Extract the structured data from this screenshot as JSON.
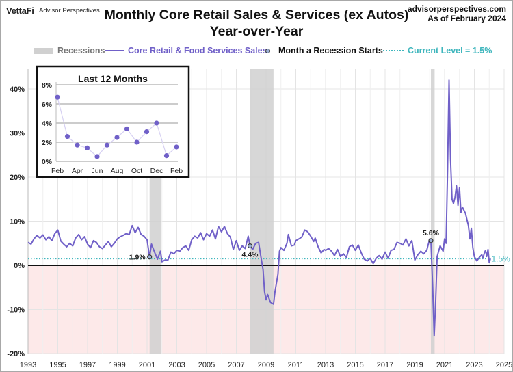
{
  "header": {
    "brand": "VettaFi",
    "brand_sub": "Advisor Perspectives",
    "title_line1": "Monthly Core Retail Sales & Services (ex Autos)",
    "title_line2": "Year-over-Year",
    "source_line1": "advisorperspectives.com",
    "source_line2": "As of February 2024"
  },
  "legend": {
    "recessions": "Recessions",
    "series": "Core Retail & Food Services Sales",
    "recession_start": "Month a Recession Starts",
    "current": "Current Level = 1.5%"
  },
  "colors": {
    "series": "#7060c8",
    "recession": "#d0d0d0",
    "current_line": "#3fb6bd",
    "negative_band": "#fde9e9",
    "grid": "#e4e4e4"
  },
  "chart_data": [
    {
      "type": "line",
      "title": "Monthly Core Retail Sales & Services (ex Autos) Year-over-Year",
      "xlabel": "",
      "ylabel": "",
      "xlim": [
        1993,
        2025
      ],
      "ylim": [
        -20,
        45
      ],
      "x_ticks": [
        "1993",
        "1995",
        "1997",
        "1999",
        "2001",
        "2003",
        "2005",
        "2007",
        "2009",
        "2011",
        "2013",
        "2015",
        "2017",
        "2019",
        "2021",
        "2023",
        "2025"
      ],
      "y_ticks": [
        "-20%",
        "-10%",
        "0%",
        "10%",
        "20%",
        "30%",
        "40%"
      ],
      "y_tick_values": [
        -20,
        -10,
        0,
        10,
        20,
        30,
        40
      ],
      "grid": true,
      "legend_position": "top",
      "current_level": 1.5,
      "current_level_label": "1.5%",
      "recessions": [
        {
          "start": 2001.17,
          "end": 2001.92
        },
        {
          "start": 2007.92,
          "end": 2009.5
        },
        {
          "start": 2020.08,
          "end": 2020.33
        }
      ],
      "recession_start_markers": [
        {
          "x": 2001.17,
          "y": 1.9,
          "label": "1.9%"
        },
        {
          "x": 2007.92,
          "y": 4.4,
          "label": "4.4%"
        },
        {
          "x": 2020.08,
          "y": 5.6,
          "label": "5.6%"
        }
      ],
      "series": [
        {
          "name": "Core Retail & Food Services Sales",
          "points": [
            [
              1993.0,
              5.2
            ],
            [
              1993.2,
              4.8
            ],
            [
              1993.4,
              6.0
            ],
            [
              1993.6,
              6.8
            ],
            [
              1993.8,
              6.2
            ],
            [
              1994.0,
              6.9
            ],
            [
              1994.2,
              5.8
            ],
            [
              1994.4,
              6.5
            ],
            [
              1994.6,
              5.6
            ],
            [
              1994.8,
              7.2
            ],
            [
              1995.0,
              8.0
            ],
            [
              1995.2,
              5.5
            ],
            [
              1995.4,
              4.8
            ],
            [
              1995.6,
              4.2
            ],
            [
              1995.8,
              5.0
            ],
            [
              1996.0,
              4.4
            ],
            [
              1996.2,
              6.2
            ],
            [
              1996.4,
              7.0
            ],
            [
              1996.6,
              5.8
            ],
            [
              1996.8,
              6.5
            ],
            [
              1997.0,
              4.8
            ],
            [
              1997.2,
              4.0
            ],
            [
              1997.4,
              5.6
            ],
            [
              1997.6,
              5.2
            ],
            [
              1997.8,
              4.2
            ],
            [
              1998.0,
              3.8
            ],
            [
              1998.2,
              4.6
            ],
            [
              1998.4,
              5.4
            ],
            [
              1998.6,
              4.2
            ],
            [
              1998.8,
              5.0
            ],
            [
              1999.0,
              6.0
            ],
            [
              1999.2,
              6.5
            ],
            [
              1999.4,
              6.8
            ],
            [
              1999.6,
              7.2
            ],
            [
              1999.8,
              7.0
            ],
            [
              2000.0,
              9.0
            ],
            [
              2000.2,
              7.4
            ],
            [
              2000.4,
              8.6
            ],
            [
              2000.6,
              7.0
            ],
            [
              2000.8,
              6.6
            ],
            [
              2001.0,
              5.8
            ],
            [
              2001.17,
              1.9
            ],
            [
              2001.3,
              4.8
            ],
            [
              2001.5,
              3.0
            ],
            [
              2001.7,
              1.4
            ],
            [
              2001.9,
              3.2
            ],
            [
              2002.0,
              0.8
            ],
            [
              2002.2,
              1.2
            ],
            [
              2002.4,
              1.2
            ],
            [
              2002.6,
              3.0
            ],
            [
              2002.8,
              2.6
            ],
            [
              2003.0,
              3.4
            ],
            [
              2003.2,
              3.2
            ],
            [
              2003.4,
              4.0
            ],
            [
              2003.6,
              4.4
            ],
            [
              2003.8,
              3.4
            ],
            [
              2004.0,
              5.8
            ],
            [
              2004.2,
              6.6
            ],
            [
              2004.4,
              6.2
            ],
            [
              2004.6,
              7.4
            ],
            [
              2004.8,
              5.8
            ],
            [
              2005.0,
              7.2
            ],
            [
              2005.2,
              6.6
            ],
            [
              2005.4,
              8.0
            ],
            [
              2005.6,
              6.0
            ],
            [
              2005.8,
              8.8
            ],
            [
              2006.0,
              7.6
            ],
            [
              2006.2,
              8.8
            ],
            [
              2006.4,
              7.2
            ],
            [
              2006.6,
              6.4
            ],
            [
              2006.8,
              3.6
            ],
            [
              2007.0,
              5.6
            ],
            [
              2007.2,
              3.4
            ],
            [
              2007.4,
              4.4
            ],
            [
              2007.6,
              3.8
            ],
            [
              2007.8,
              6.6
            ],
            [
              2007.92,
              4.4
            ],
            [
              2008.1,
              3.6
            ],
            [
              2008.3,
              5.0
            ],
            [
              2008.5,
              5.2
            ],
            [
              2008.6,
              3.0
            ],
            [
              2008.8,
              -1.0
            ],
            [
              2008.9,
              -6.0
            ],
            [
              2009.0,
              -7.8
            ],
            [
              2009.1,
              -6.6
            ],
            [
              2009.3,
              -8.4
            ],
            [
              2009.5,
              -8.8
            ],
            [
              2009.6,
              -6.0
            ],
            [
              2009.8,
              -2.0
            ],
            [
              2009.9,
              3.2
            ],
            [
              2010.0,
              4.0
            ],
            [
              2010.2,
              3.4
            ],
            [
              2010.4,
              5.0
            ],
            [
              2010.5,
              7.0
            ],
            [
              2010.7,
              4.4
            ],
            [
              2010.9,
              4.6
            ],
            [
              2011.0,
              5.6
            ],
            [
              2011.2,
              6.0
            ],
            [
              2011.4,
              6.4
            ],
            [
              2011.6,
              8.0
            ],
            [
              2011.8,
              7.6
            ],
            [
              2012.0,
              6.6
            ],
            [
              2012.2,
              5.4
            ],
            [
              2012.3,
              6.2
            ],
            [
              2012.5,
              4.2
            ],
            [
              2012.7,
              2.8
            ],
            [
              2012.9,
              3.6
            ],
            [
              2013.0,
              3.4
            ],
            [
              2013.2,
              3.8
            ],
            [
              2013.4,
              3.2
            ],
            [
              2013.6,
              2.2
            ],
            [
              2013.8,
              3.6
            ],
            [
              2014.0,
              2.0
            ],
            [
              2014.2,
              2.6
            ],
            [
              2014.4,
              1.8
            ],
            [
              2014.6,
              4.2
            ],
            [
              2014.8,
              4.6
            ],
            [
              2015.0,
              3.4
            ],
            [
              2015.2,
              4.6
            ],
            [
              2015.4,
              2.8
            ],
            [
              2015.6,
              1.4
            ],
            [
              2015.8,
              1.0
            ],
            [
              2016.0,
              1.6
            ],
            [
              2016.2,
              0.4
            ],
            [
              2016.4,
              1.6
            ],
            [
              2016.6,
              2.2
            ],
            [
              2016.8,
              1.4
            ],
            [
              2017.0,
              3.0
            ],
            [
              2017.2,
              1.6
            ],
            [
              2017.4,
              3.4
            ],
            [
              2017.6,
              3.6
            ],
            [
              2017.8,
              5.2
            ],
            [
              2018.0,
              5.0
            ],
            [
              2018.2,
              4.6
            ],
            [
              2018.4,
              6.0
            ],
            [
              2018.6,
              4.4
            ],
            [
              2018.8,
              5.6
            ],
            [
              2019.0,
              1.2
            ],
            [
              2019.2,
              2.4
            ],
            [
              2019.4,
              3.2
            ],
            [
              2019.6,
              2.6
            ],
            [
              2019.8,
              3.4
            ],
            [
              2020.0,
              6.0
            ],
            [
              2020.08,
              5.6
            ],
            [
              2020.2,
              -5.0
            ],
            [
              2020.3,
              -16.0
            ],
            [
              2020.4,
              -8.0
            ],
            [
              2020.5,
              2.0
            ],
            [
              2020.7,
              4.4
            ],
            [
              2020.9,
              3.2
            ],
            [
              2021.0,
              6.0
            ],
            [
              2021.1,
              5.0
            ],
            [
              2021.2,
              22.0
            ],
            [
              2021.3,
              42.0
            ],
            [
              2021.4,
              24.0
            ],
            [
              2021.5,
              15.0
            ],
            [
              2021.6,
              14.0
            ],
            [
              2021.7,
              15.4
            ],
            [
              2021.8,
              18.0
            ],
            [
              2021.9,
              13.6
            ],
            [
              2022.0,
              17.6
            ],
            [
              2022.1,
              12.0
            ],
            [
              2022.2,
              13.2
            ],
            [
              2022.4,
              11.8
            ],
            [
              2022.6,
              9.0
            ],
            [
              2022.7,
              6.0
            ],
            [
              2022.8,
              8.4
            ],
            [
              2022.9,
              4.0
            ],
            [
              2023.0,
              2.0
            ],
            [
              2023.17,
              1.0
            ],
            [
              2023.33,
              1.8
            ],
            [
              2023.5,
              2.4
            ],
            [
              2023.58,
              1.6
            ],
            [
              2023.67,
              2.8
            ],
            [
              2023.75,
              3.4
            ],
            [
              2023.83,
              2.0
            ],
            [
              2023.92,
              3.6
            ],
            [
              2024.0,
              0.6
            ],
            [
              2024.08,
              1.5
            ]
          ]
        }
      ]
    },
    {
      "type": "line",
      "title": "Last 12 Months",
      "ylim": [
        0,
        8
      ],
      "y_ticks": [
        "0%",
        "2%",
        "4%",
        "6%",
        "8%"
      ],
      "y_tick_values": [
        0,
        2,
        4,
        6,
        8
      ],
      "x_ticks": [
        "Feb",
        "Apr",
        "Jun",
        "Aug",
        "Oct",
        "Dec",
        "Feb"
      ],
      "categories": [
        "Feb",
        "Mar",
        "Apr",
        "May",
        "Jun",
        "Jul",
        "Aug",
        "Sep",
        "Oct",
        "Nov",
        "Dec",
        "Jan",
        "Feb"
      ],
      "values": [
        6.7,
        2.6,
        1.7,
        1.4,
        0.5,
        1.7,
        2.5,
        3.4,
        2.0,
        3.1,
        4.0,
        0.6,
        1.5
      ],
      "grid": true
    }
  ]
}
